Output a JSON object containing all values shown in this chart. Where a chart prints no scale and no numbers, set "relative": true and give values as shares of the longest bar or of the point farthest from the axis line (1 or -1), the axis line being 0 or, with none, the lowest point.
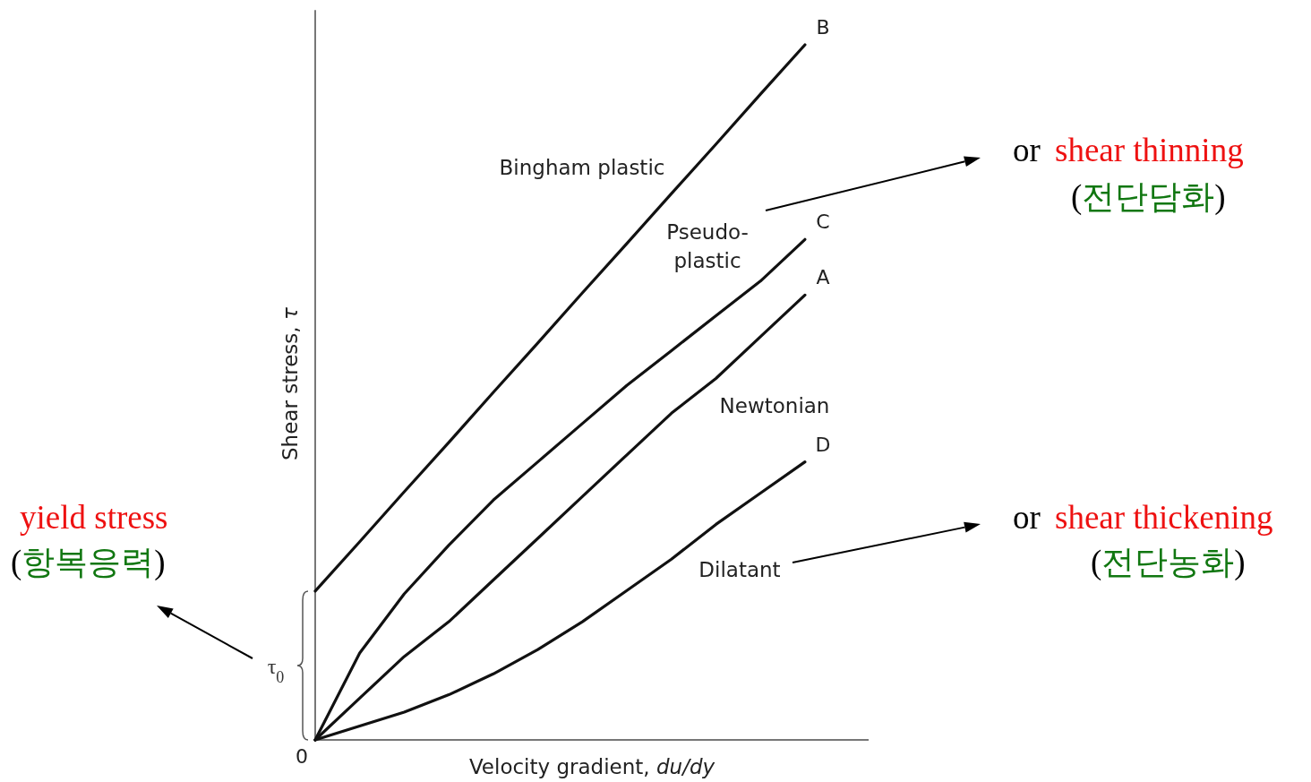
{
  "chart_data": {
    "type": "line",
    "relative": true,
    "xlabel": "Velocity gradient, *du/dy*",
    "ylabel": "Shear stress, *τ*",
    "marker": "none",
    "line_style": "solid",
    "categories": [
      null,
      null,
      null,
      null,
      null,
      null,
      null,
      null,
      null,
      null,
      null,
      null
    ],
    "series": [
      {
        "name": "B",
        "color": "#111111",
        "values": [
          0.214,
          0.285,
          0.357,
          0.428,
          0.5,
          0.571,
          0.643,
          0.714,
          0.786,
          0.857,
          0.929,
          1
        ]
      },
      {
        "name": "C",
        "color": "#111111",
        "values": [
          0,
          0.125,
          0.21,
          0.28,
          0.345,
          0.4,
          0.455,
          0.51,
          0.56,
          0.61,
          0.66,
          0.72
        ]
      },
      {
        "name": "A",
        "color": "#111111",
        "values": [
          0,
          0.06,
          0.12,
          0.17,
          0.23,
          0.29,
          0.35,
          0.41,
          0.47,
          0.52,
          0.58,
          0.64
        ]
      },
      {
        "name": "D",
        "color": "#111111",
        "values": [
          0,
          0.02,
          0.04,
          0.065,
          0.095,
          0.13,
          0.17,
          0.215,
          0.26,
          0.31,
          0.355,
          0.4
        ]
      }
    ],
    "annotations": [
      "Bingham plastic",
      "Pseudo-\nplastic",
      "Newtonian",
      "Dilatant",
      "τ$_{0}$",
      "0",
      "yield stress",
      "(항복응력)",
      "or",
      "shear thinning",
      "(전단담화)",
      "or",
      "shear thickening",
      "(전단농화)"
    ]
  }
}
